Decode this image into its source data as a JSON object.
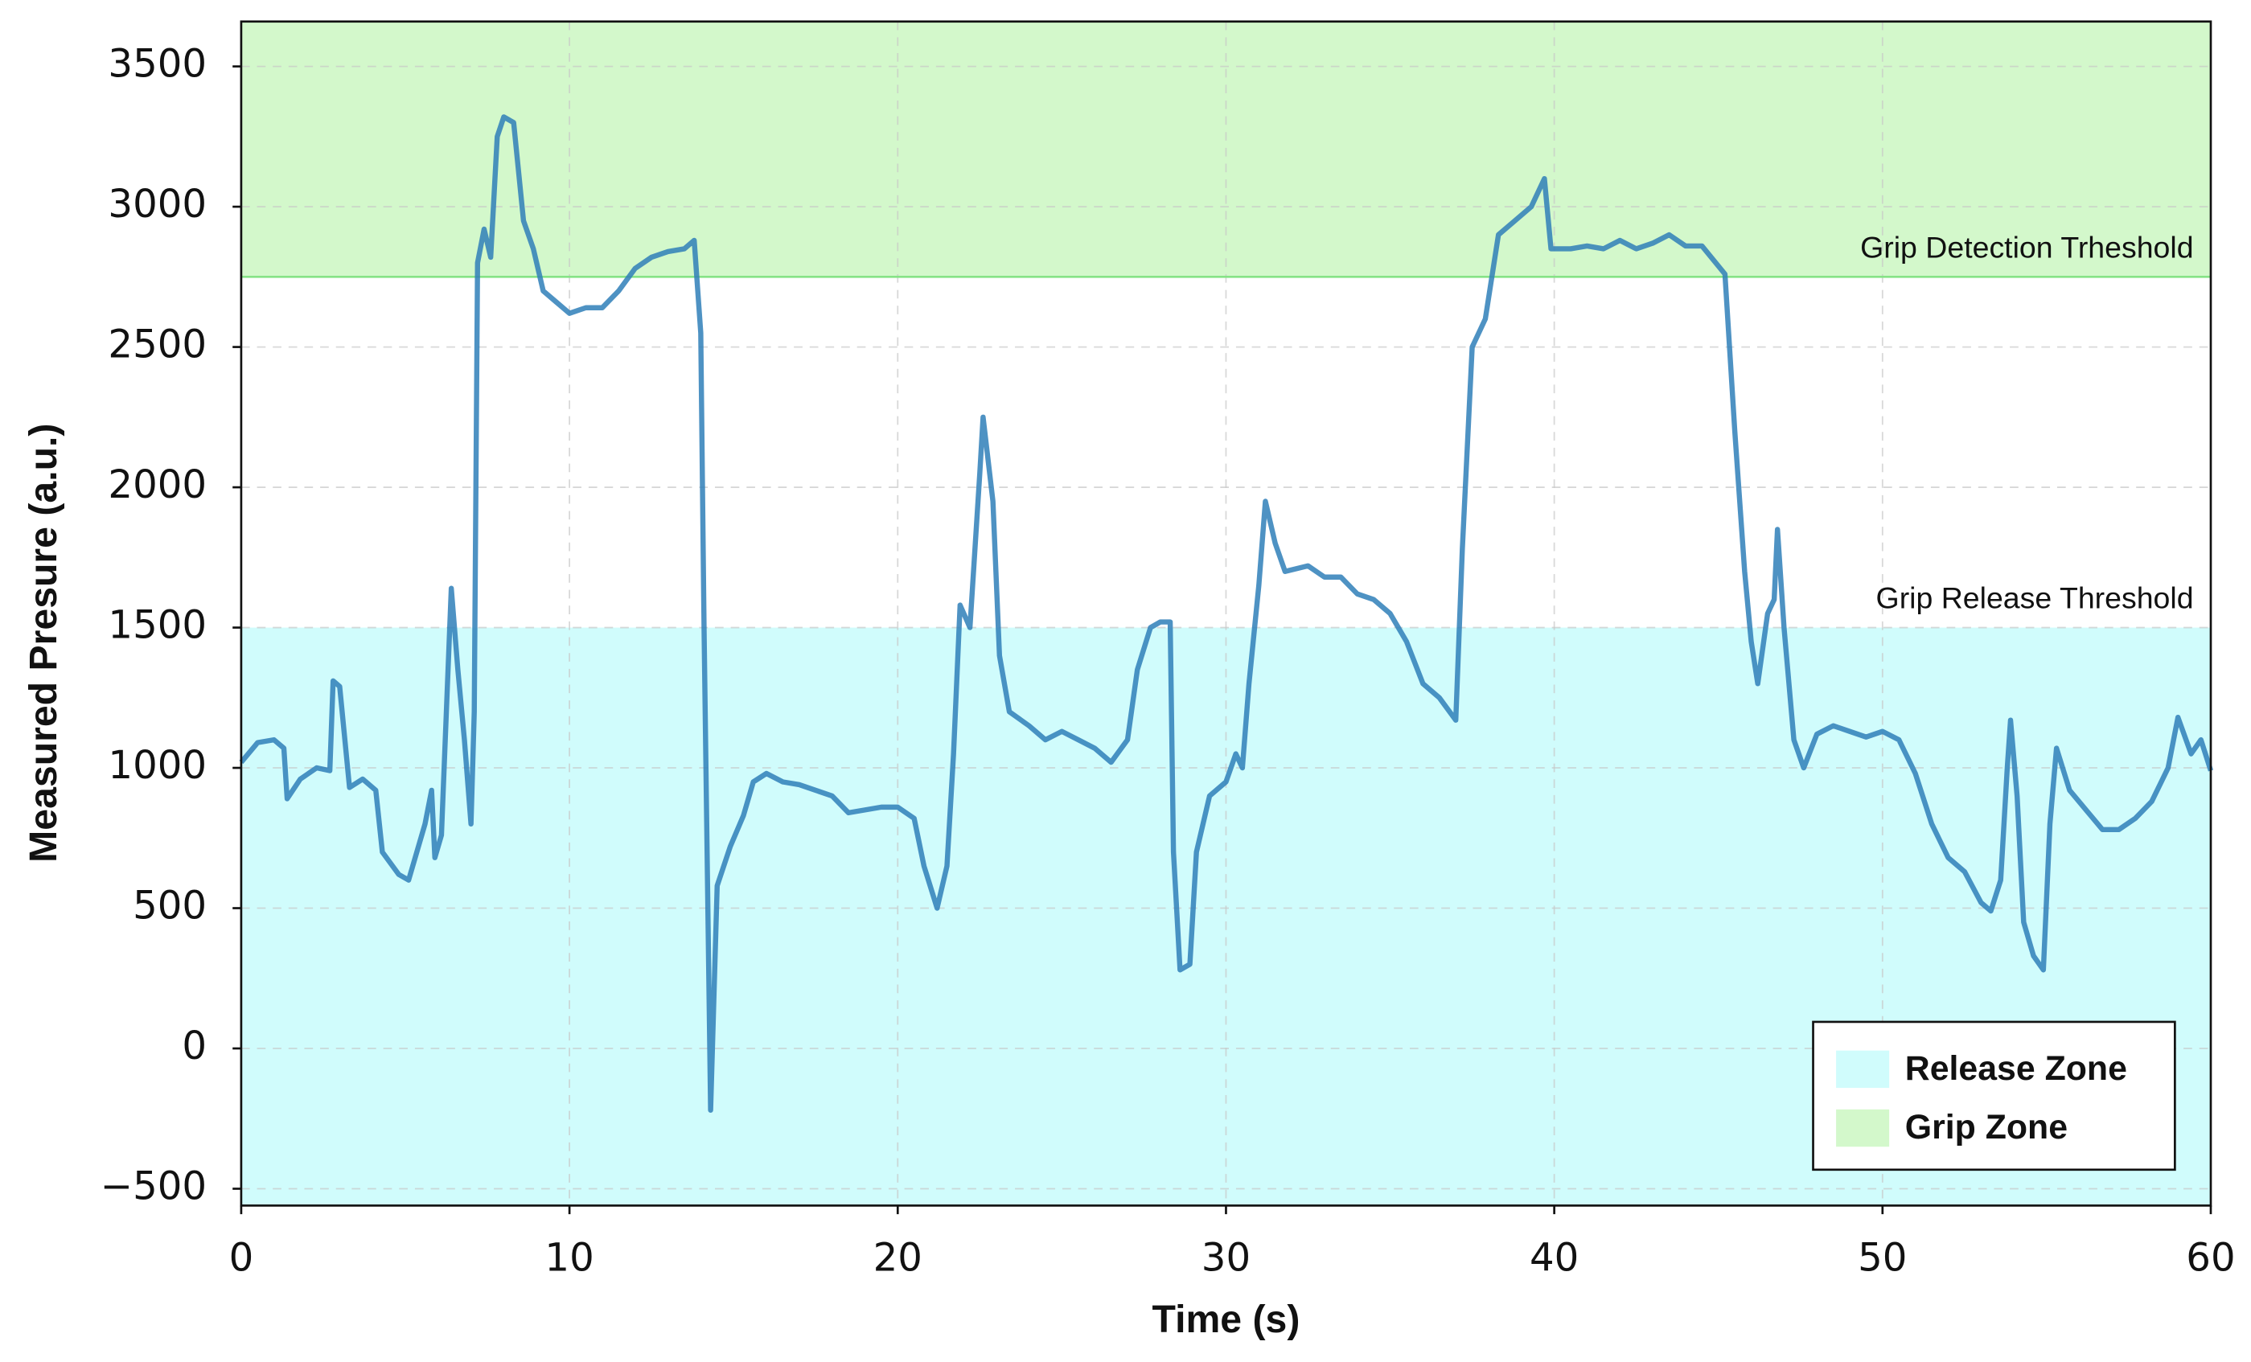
{
  "chart_data": {
    "type": "line",
    "xlabel": "Time (s)",
    "ylabel": "Measured Presure (a.u.)",
    "xlim": [
      0,
      60
    ],
    "ylim": [
      -560,
      3660
    ],
    "xticks": [
      0,
      10,
      20,
      30,
      40,
      50,
      60
    ],
    "yticks": [
      {
        "value": -500,
        "label": "−500"
      },
      0,
      500,
      1000,
      1500,
      2000,
      2500,
      3000,
      3500
    ],
    "grid": true,
    "legend": "lower right",
    "zones": [
      {
        "name": "Release Zone",
        "color": "#d0fcfc",
        "range": [
          -560,
          1500
        ]
      },
      {
        "name": "Grip Zone",
        "color": "#d3f8cb",
        "range": [
          2750,
          3660
        ]
      }
    ],
    "thresholds": [
      {
        "label": "Grip Detection Trheshold",
        "value": 2750,
        "color": "#86e386"
      },
      {
        "label": "Grip Release Threshold",
        "value": 1500
      }
    ],
    "series": [
      {
        "color": "#2f7fb9",
        "x": [
          0,
          0.5,
          1,
          1.3,
          1.4,
          1.8,
          2.3,
          2.7,
          2.8,
          3.0,
          3.3,
          3.7,
          4.1,
          4.3,
          4.8,
          5.1,
          5.6,
          5.8,
          5.9,
          6.1,
          6.4,
          6.6,
          6.8,
          7.0,
          7.1,
          7.2,
          7.4,
          7.6,
          7.8,
          8.0,
          8.3,
          8.6,
          8.9,
          9.2,
          9.6,
          10.0,
          10.5,
          11.0,
          11.5,
          12.0,
          12.5,
          13.0,
          13.5,
          13.8,
          14.0,
          14.1,
          14.3,
          14.5,
          14.9,
          15.3,
          15.6,
          16.0,
          16.5,
          17.0,
          17.5,
          18.0,
          18.5,
          19.0,
          19.5,
          20.0,
          20.5,
          20.8,
          21.2,
          21.5,
          21.7,
          21.9,
          22.2,
          22.5,
          22.6,
          22.9,
          23.1,
          23.4,
          24.0,
          24.5,
          25.0,
          25.5,
          26.0,
          26.5,
          27.0,
          27.3,
          27.7,
          28.0,
          28.3,
          28.4,
          28.6,
          28.9,
          29.1,
          29.5,
          30.0,
          30.3,
          30.5,
          30.7,
          31.0,
          31.2,
          31.5,
          31.8,
          32.5,
          33.0,
          33.5,
          34.0,
          34.5,
          35.0,
          35.5,
          36.0,
          36.5,
          37.0,
          37.2,
          37.5,
          37.9,
          38.3,
          38.8,
          39.3,
          39.7,
          39.9,
          40.5,
          41.0,
          41.5,
          42.0,
          42.5,
          43.0,
          43.5,
          44.0,
          44.5,
          45.2,
          45.5,
          45.8,
          46.0,
          46.2,
          46.5,
          46.7,
          46.8,
          47.0,
          47.3,
          47.6,
          48.0,
          48.5,
          49.0,
          49.5,
          50.0,
          50.5,
          51.0,
          51.5,
          52.0,
          52.5,
          53.0,
          53.3,
          53.6,
          53.8,
          53.9,
          54.1,
          54.3,
          54.6,
          54.9,
          55.1,
          55.3,
          55.7,
          56.2,
          56.7,
          57.2,
          57.7,
          58.2,
          58.7,
          59.0,
          59.4,
          59.7,
          60
        ],
        "values": [
          1020,
          1090,
          1100,
          1070,
          890,
          960,
          1000,
          990,
          1310,
          1290,
          930,
          960,
          920,
          700,
          620,
          600,
          800,
          920,
          680,
          760,
          1640,
          1350,
          1100,
          800,
          1200,
          2800,
          2920,
          2820,
          3250,
          3320,
          3300,
          2950,
          2850,
          2700,
          2660,
          2620,
          2640,
          2640,
          2700,
          2780,
          2820,
          2840,
          2850,
          2880,
          2550,
          1500,
          -220,
          580,
          720,
          830,
          950,
          980,
          950,
          940,
          920,
          900,
          840,
          850,
          860,
          860,
          820,
          650,
          500,
          650,
          1050,
          1580,
          1500,
          2050,
          2250,
          1950,
          1400,
          1200,
          1150,
          1100,
          1130,
          1100,
          1070,
          1020,
          1100,
          1350,
          1500,
          1520,
          1520,
          700,
          280,
          300,
          700,
          900,
          950,
          1050,
          1000,
          1300,
          1650,
          1950,
          1800,
          1700,
          1720,
          1680,
          1680,
          1620,
          1600,
          1550,
          1450,
          1300,
          1250,
          1170,
          1780,
          2500,
          2600,
          2900,
          2950,
          3000,
          3100,
          2850,
          2850,
          2860,
          2850,
          2880,
          2850,
          2870,
          2900,
          2860,
          2860,
          2760,
          2200,
          1700,
          1450,
          1300,
          1550,
          1600,
          1850,
          1500,
          1100,
          1000,
          1120,
          1150,
          1130,
          1110,
          1130,
          1100,
          980,
          800,
          680,
          630,
          520,
          490,
          600,
          1000,
          1170,
          900,
          450,
          330,
          280,
          800,
          1070,
          920,
          850,
          780,
          780,
          820,
          880,
          1000,
          1180,
          1050,
          1100,
          990
        ]
      }
    ]
  }
}
